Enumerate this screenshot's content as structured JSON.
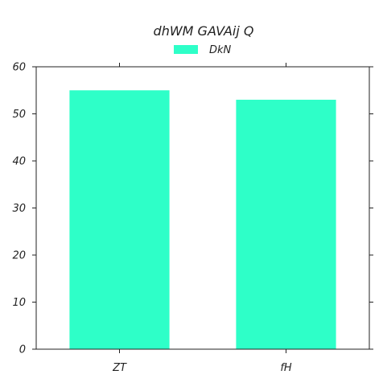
{
  "chart_data": {
    "type": "bar",
    "title": "dhWM GAVAij Q",
    "categories": [
      "ZT",
      "fH"
    ],
    "series": [
      {
        "name": "DkN",
        "values": [
          55,
          53
        ],
        "color": "#2effc8"
      }
    ],
    "ylim": [
      0,
      60
    ],
    "yticks": [
      "0",
      "10",
      "20",
      "30",
      "40",
      "50",
      "60"
    ],
    "xlabel": "",
    "ylabel": "",
    "grid": false,
    "legend": "top-center"
  }
}
